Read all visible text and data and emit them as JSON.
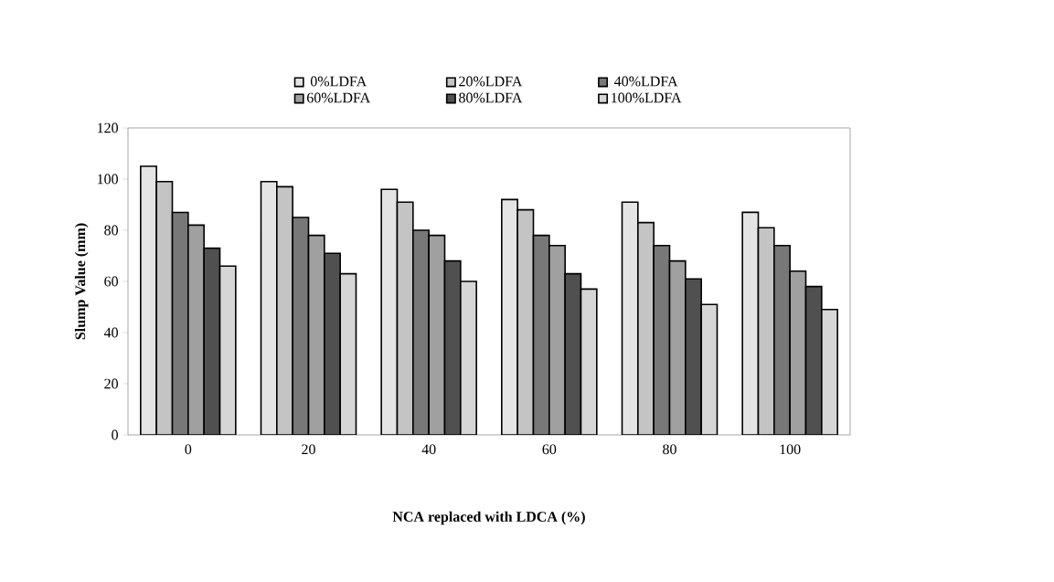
{
  "chart_data": {
    "type": "bar",
    "xlabel": "NCA replaced with LDCA (%)",
    "ylabel": "Slump Value (mm)",
    "categories": [
      "0",
      "20",
      "40",
      "60",
      "80",
      "100"
    ],
    "series": [
      {
        "name": "0%LDFA",
        "color": "#e4e4e4",
        "values": [
          105,
          99,
          96,
          92,
          91,
          87
        ]
      },
      {
        "name": "20%LDFA",
        "color": "#c4c4c4",
        "values": [
          99,
          97,
          91,
          88,
          83,
          81
        ]
      },
      {
        "name": "40%LDFA",
        "color": "#787878",
        "values": [
          87,
          85,
          80,
          78,
          74,
          74
        ]
      },
      {
        "name": "60%LDFA",
        "color": "#a0a0a0",
        "values": [
          82,
          78,
          78,
          74,
          68,
          64
        ]
      },
      {
        "name": "80%LDFA",
        "color": "#505050",
        "values": [
          73,
          71,
          68,
          63,
          61,
          58
        ]
      },
      {
        "name": "100%LDFA",
        "color": "#d6d6d6",
        "values": [
          66,
          63,
          60,
          57,
          51,
          49
        ]
      }
    ],
    "ylim": [
      0,
      120
    ],
    "yticks": [
      0,
      20,
      40,
      60,
      80,
      100,
      120
    ],
    "grid": false,
    "legend": "top"
  }
}
